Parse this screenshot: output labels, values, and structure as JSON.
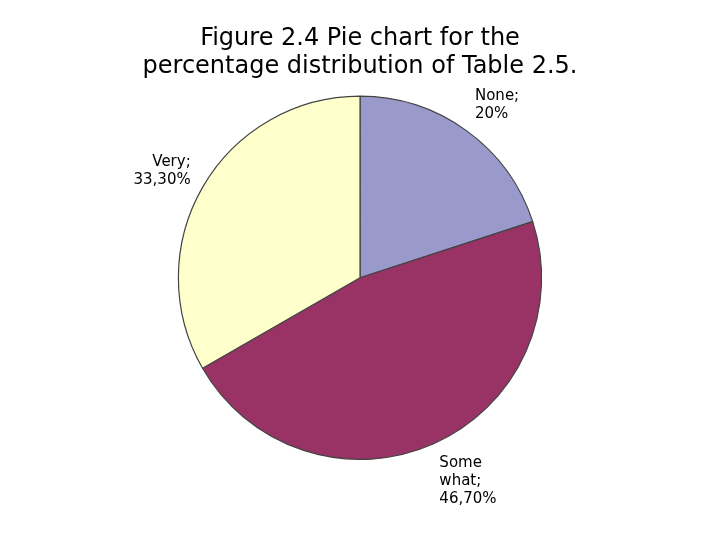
{
  "chart_data": {
    "type": "pie",
    "title": "Figure 2.4 Pie chart for the\npercentage distribution of Table 2.5.",
    "categories": [
      "None;",
      "Some\nwhat;",
      "Very;"
    ],
    "values": [
      20.0,
      46.7,
      33.3
    ],
    "value_labels": [
      "20%",
      "46,70%",
      "33,30%"
    ],
    "colors": [
      "#9999cc",
      "#993366",
      "#ffffcc"
    ],
    "data_labels": true
  }
}
